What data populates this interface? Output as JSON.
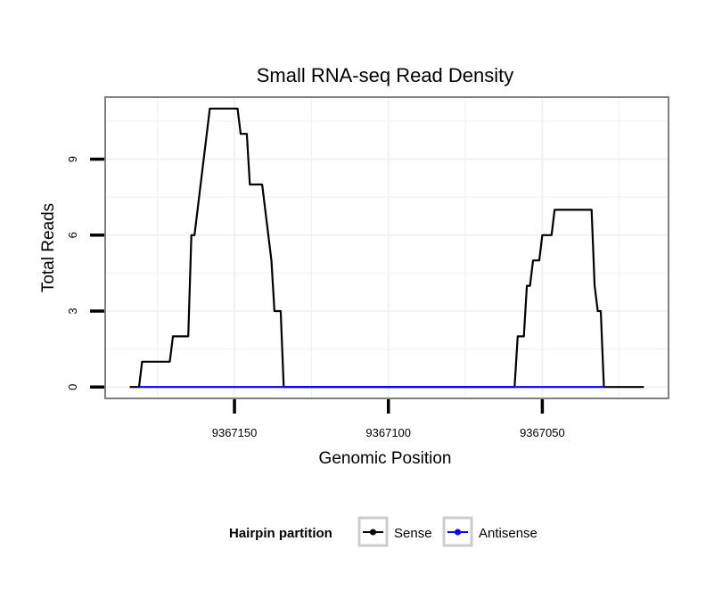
{
  "colors": {
    "sense": "#000000",
    "antisense": "#0000ff",
    "grid": "#f2f2f2",
    "panel_border": "#7f7f7f",
    "legend_key_border": "#cccccc"
  },
  "chart_data": {
    "type": "line",
    "title": "Small RNA-seq Read Density",
    "xlabel": "Genomic Position",
    "ylabel": "Total Reads",
    "x_reversed": true,
    "xlim": [
      9367192,
      9367009
    ],
    "ylim": [
      -0.45,
      11.45
    ],
    "x_ticks": [
      9367150,
      9367100,
      9367050
    ],
    "x_tick_labels": [
      "9367150",
      "9367100",
      "9367050"
    ],
    "y_ticks": [
      0,
      3,
      6,
      9
    ],
    "y_tick_labels": [
      "0",
      "3",
      "6",
      "9"
    ],
    "grid": true,
    "legend": {
      "title": "Hairpin partition",
      "position": "bottom",
      "entries": [
        "Sense",
        "Antisense"
      ]
    },
    "series": [
      {
        "name": "Sense",
        "color_key": "sense",
        "points": [
          [
            9367184,
            0
          ],
          [
            9367181,
            0
          ],
          [
            9367180,
            1
          ],
          [
            9367171,
            1
          ],
          [
            9367170,
            2
          ],
          [
            9367165,
            2
          ],
          [
            9367164,
            6
          ],
          [
            9367163,
            6
          ],
          [
            9367158,
            11
          ],
          [
            9367149,
            11
          ],
          [
            9367148,
            10
          ],
          [
            9367146,
            10
          ],
          [
            9367145,
            8
          ],
          [
            9367141,
            8
          ],
          [
            9367138,
            5
          ],
          [
            9367137,
            3
          ],
          [
            9367135,
            3
          ],
          [
            9367134,
            0
          ],
          [
            9367059,
            0
          ],
          [
            9367058,
            2
          ],
          [
            9367056,
            2
          ],
          [
            9367055,
            4
          ],
          [
            9367054,
            4
          ],
          [
            9367053,
            5
          ],
          [
            9367051,
            5
          ],
          [
            9367050,
            6
          ],
          [
            9367047,
            6
          ],
          [
            9367046,
            7
          ],
          [
            9367034,
            7
          ],
          [
            9367033,
            4
          ],
          [
            9367032,
            3
          ],
          [
            9367031,
            3
          ],
          [
            9367030,
            0
          ],
          [
            9367017,
            0
          ]
        ]
      },
      {
        "name": "Antisense",
        "color_key": "antisense",
        "points": [
          [
            9367181,
            0
          ],
          [
            9367030,
            0
          ]
        ]
      }
    ]
  }
}
